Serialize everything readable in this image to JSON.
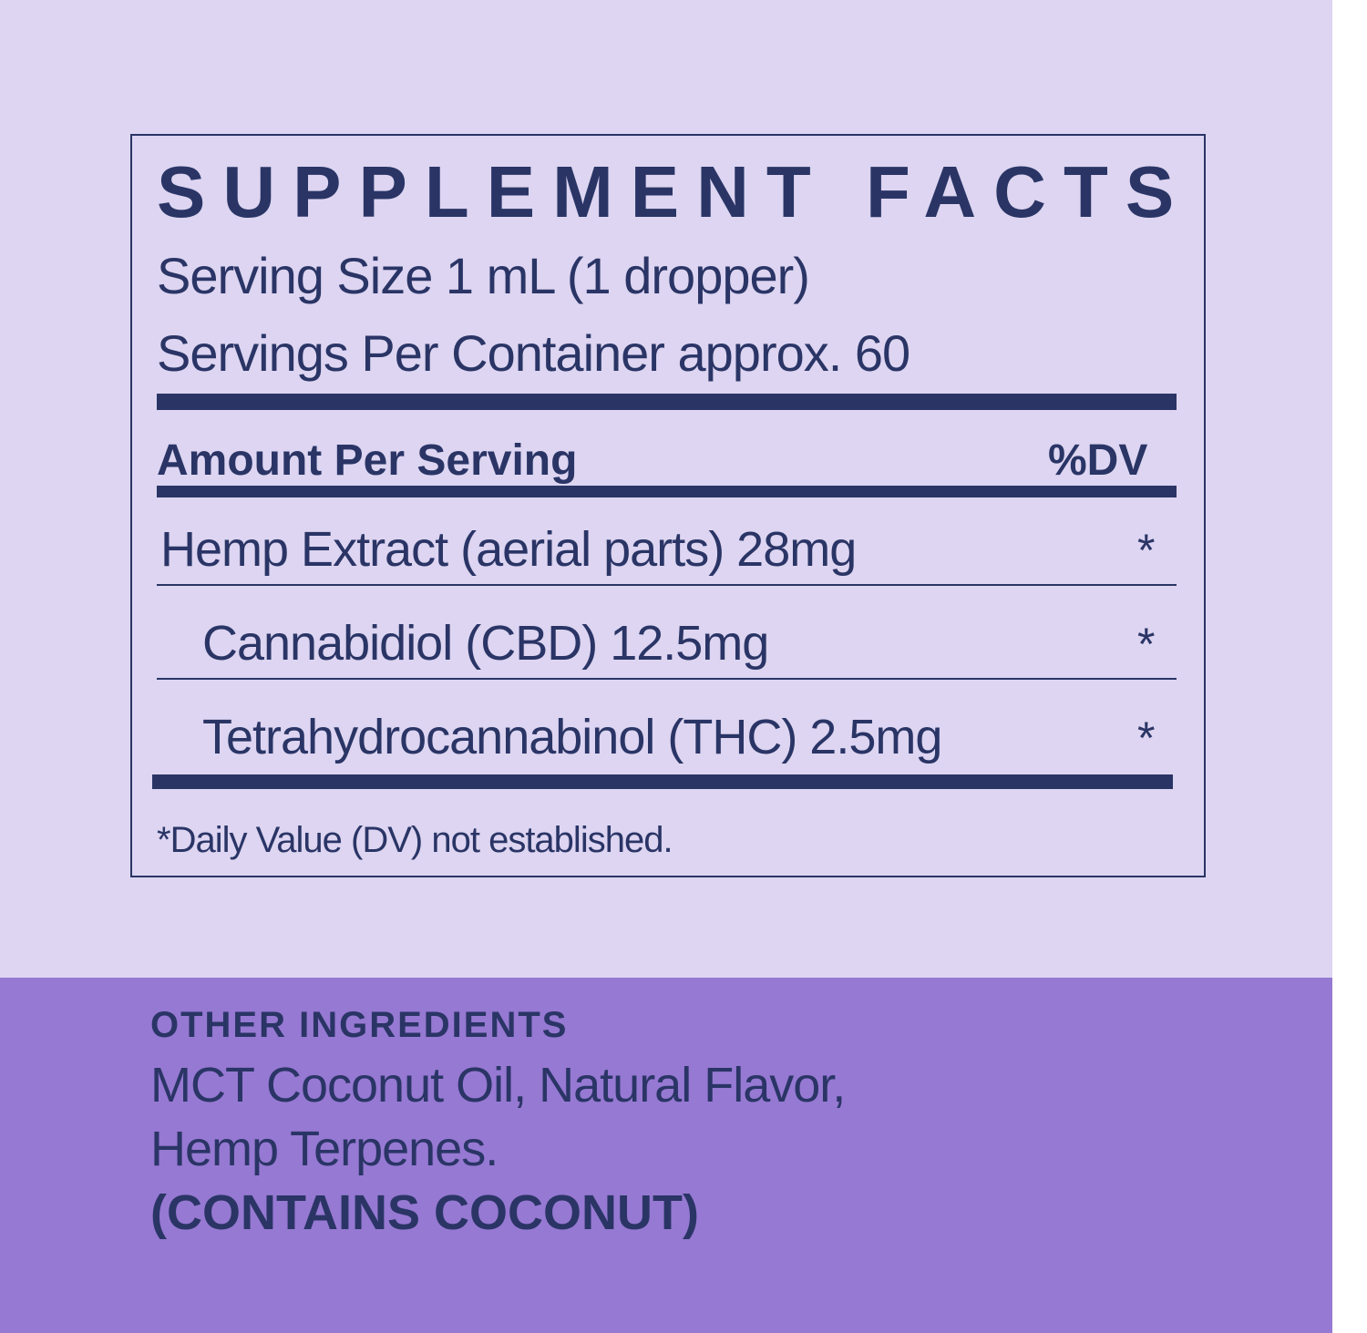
{
  "title": "SUPPLEMENT FACTS",
  "serving_size": "Serving Size 1 mL (1 dropper)",
  "servings_per_container": "Servings Per Container approx. 60",
  "header": {
    "amount": "Amount Per Serving",
    "dv": "%DV"
  },
  "rows": [
    {
      "label": "Hemp Extract (aerial parts) 28mg",
      "dv": "*"
    },
    {
      "label": "Cannabidiol (CBD) 12.5mg",
      "dv": "*"
    },
    {
      "label": "Tetrahydrocannabinol (THC) 2.5mg",
      "dv": "*"
    }
  ],
  "footnote": "*Daily Value (DV) not established.",
  "other_ingredients": {
    "heading": "OTHER INGREDIENTS",
    "line1": "MCT Coconut Oil, Natural Flavor,",
    "line2": "Hemp Terpenes.",
    "allergen": "(CONTAINS COCONUT)"
  },
  "colors": {
    "background": "#ddd5f1",
    "band": "#9679d2",
    "text": "#2a3566"
  }
}
